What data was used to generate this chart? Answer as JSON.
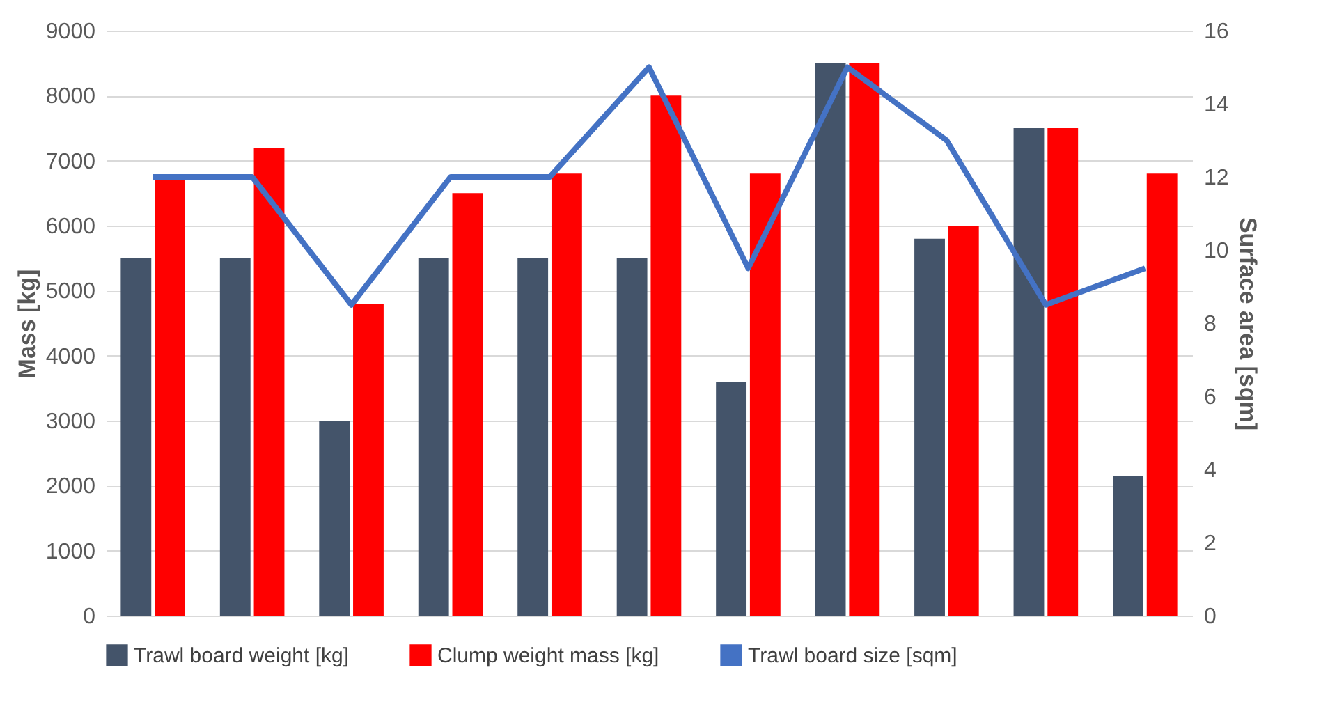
{
  "chart_data": {
    "type": "bar",
    "ylabel": "Mass [kg]",
    "y2label": "Surface area [sqm]",
    "categories": [
      null,
      null,
      null,
      null,
      null,
      null,
      null,
      null,
      null,
      null,
      null
    ],
    "series": [
      {
        "name": "Trawl board weight [kg]",
        "color": "#44546a",
        "values": [
          5500,
          5500,
          3000,
          5500,
          5500,
          5500,
          3600,
          8500,
          5800,
          7500,
          2150
        ]
      },
      {
        "name": "Clump weight mass [kg]",
        "color": "#ff0000",
        "values": [
          6750,
          7200,
          4800,
          6500,
          6800,
          8000,
          6800,
          8500,
          6000,
          7500,
          6800
        ]
      },
      {
        "name": "Trawl board size [sqm]",
        "type": "line",
        "axis": "y2",
        "color": "#4472c4",
        "values": [
          12,
          12,
          8.5,
          12,
          12,
          15,
          9.5,
          15,
          13,
          8.5,
          9.5
        ]
      }
    ],
    "ylim": [
      0,
      9000
    ],
    "yticks": [
      0,
      1000,
      2000,
      3000,
      4000,
      5000,
      6000,
      7000,
      8000,
      9000
    ],
    "y2lim": [
      0,
      16
    ],
    "y2ticks": [
      0,
      2,
      4,
      6,
      8,
      10,
      12,
      14,
      16
    ],
    "grid": "y",
    "legend": "bottom",
    "marker": "none",
    "line_style": "solid"
  }
}
